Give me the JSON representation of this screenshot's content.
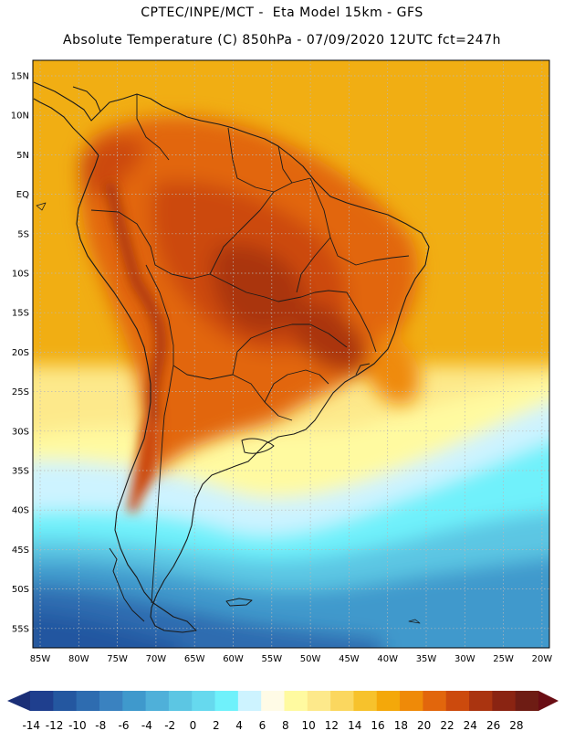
{
  "header": {
    "line1": "CPTEC/INPE/MCT -  Eta Model 15km - GFS",
    "line2": "Absolute Temperature (C) 850hPa - 07/09/2020 12UTC fct=247h"
  },
  "map": {
    "lat_labels": [
      "15N",
      "10N",
      "5N",
      "EQ",
      "5S",
      "10S",
      "15S",
      "20S",
      "25S",
      "30S",
      "35S",
      "40S",
      "45S",
      "50S",
      "55S"
    ],
    "lon_labels": [
      "85W",
      "80W",
      "75W",
      "70W",
      "65W",
      "60W",
      "55W",
      "50W",
      "45W",
      "40W",
      "35W",
      "30W",
      "25W",
      "20W"
    ],
    "colors": {
      "frame": "#000000",
      "grid": "#b8b8b8",
      "coast": "#1a1a1a"
    }
  },
  "colorbar": {
    "labels": [
      "-14",
      "-12",
      "-10",
      "-8",
      "-6",
      "-4",
      "-2",
      "0",
      "2",
      "4",
      "6",
      "8",
      "10",
      "12",
      "14",
      "16",
      "18",
      "20",
      "22",
      "24",
      "26",
      "28"
    ],
    "colors": [
      "#1f3f8e",
      "#2457a0",
      "#2e6cb0",
      "#3a82c0",
      "#3f99cc",
      "#4fb0d9",
      "#5cc6e3",
      "#66d9ee",
      "#6ff1fb",
      "#cdf3ff",
      "#fffbe6",
      "#fffaa0",
      "#fde98b",
      "#fbd75f",
      "#f7c22c",
      "#f4a80a",
      "#ef8a08",
      "#e2660c",
      "#cc4a0d",
      "#aa3410",
      "#8a2412",
      "#6e1c14"
    ],
    "underflow_color": "#1b2f77",
    "overflow_color": "#6a0d14"
  }
}
